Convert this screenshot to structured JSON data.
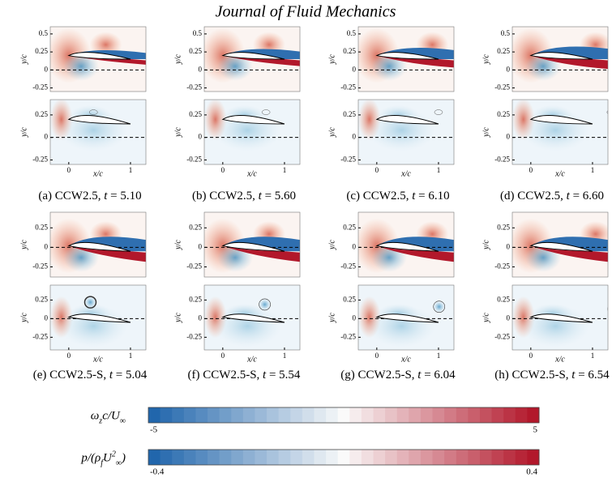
{
  "header": {
    "title": "Journal of Fluid Mechanics"
  },
  "rows": [
    {
      "yticks": [
        0.5,
        0.25,
        0,
        -0.25
      ],
      "ylabel": "y/c",
      "ylim": [
        -0.3,
        0.6
      ]
    },
    {
      "yticks": [
        0.25,
        0,
        -0.25
      ],
      "ylabel": "y/c",
      "ylim": [
        -0.3,
        0.42
      ],
      "xticks": [
        0,
        1
      ],
      "xlabel": "x/c"
    },
    {
      "yticks": [
        0.25,
        0,
        -0.25
      ],
      "ylabel": "y/c",
      "ylim": [
        -0.38,
        0.45
      ]
    },
    {
      "yticks": [
        0.25,
        0,
        -0.25
      ],
      "ylabel": "y/c",
      "ylim": [
        -0.42,
        0.45
      ],
      "xticks": [
        0,
        1
      ],
      "xlabel": "x/c"
    }
  ],
  "captions": [
    {
      "text": "(a) CCW2.5, ",
      "var": "t",
      "rest": " = 5.10"
    },
    {
      "text": "(b) CCW2.5, ",
      "var": "t",
      "rest": " = 5.60"
    },
    {
      "text": "(c) CCW2.5, ",
      "var": "t",
      "rest": " = 6.10"
    },
    {
      "text": "(d) CCW2.5, ",
      "var": "t",
      "rest": " = 6.60"
    },
    {
      "text": "(e) CCW2.5-S, ",
      "var": "t",
      "rest": " = 5.04"
    },
    {
      "text": "(f) CCW2.5-S, ",
      "var": "t",
      "rest": " = 5.54"
    },
    {
      "text": "(g) CCW2.5-S, ",
      "var": "t",
      "rest": " = 6.04"
    },
    {
      "text": "(h) CCW2.5-S, ",
      "var": "t",
      "rest": " = 6.54"
    }
  ],
  "colorbars": [
    {
      "label": [
        {
          "t": "ω"
        },
        {
          "sub": "z"
        },
        {
          "t": "c/U"
        },
        {
          "sub": "∞"
        }
      ],
      "min": -5,
      "max": 5
    },
    {
      "label": [
        {
          "t": "p/(ρ"
        },
        {
          "sub": "f"
        },
        {
          "t": "U"
        },
        {
          "sup": "2"
        },
        {
          "sub": "∞"
        },
        {
          "t": ")"
        }
      ],
      "min": -0.4,
      "max": 0.4
    }
  ]
}
